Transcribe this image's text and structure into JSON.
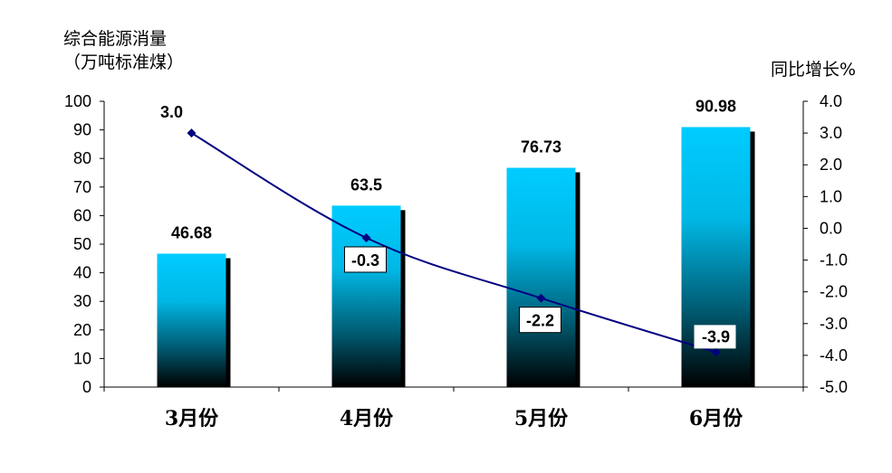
{
  "chart_data": {
    "type": "bar+line",
    "categories": [
      "3月份",
      "4月份",
      "5月份",
      "6月份"
    ],
    "left_axis": {
      "label_line1": "综合能源消量",
      "label_line2": "（万吨标准煤）",
      "ylim": [
        0,
        100
      ],
      "ticks": [
        "100",
        "90",
        "80",
        "70",
        "60",
        "50",
        "40",
        "30",
        "20",
        "10",
        "0"
      ]
    },
    "right_axis": {
      "label": "同比增长%",
      "ylim": [
        -5.0,
        4.0
      ],
      "ticks": [
        "4.0",
        "3.0",
        "2.0",
        "1.0",
        "0.0",
        "-1.0",
        "-2.0",
        "-3.0",
        "-4.0",
        "-5.0"
      ]
    },
    "bars": {
      "values": [
        46.68,
        63.5,
        76.73,
        90.98
      ],
      "labels": [
        "46.68",
        "63.5",
        "76.73",
        "90.98"
      ],
      "color_top": "#00CCFF",
      "color_bottom": "#000000"
    },
    "line": {
      "values": [
        3.0,
        -0.3,
        -2.2,
        -3.9
      ],
      "labels": [
        "3.0",
        "-0.3",
        "-2.2",
        "-3.9"
      ],
      "color": "#000080"
    }
  }
}
